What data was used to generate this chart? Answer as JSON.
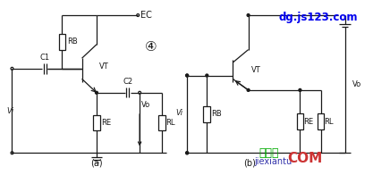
{
  "bg_color": "#ffffff",
  "line_color": "#1a1a1a",
  "watermark1_text": "dg.js123.com",
  "watermark1_color": "#0000ee",
  "watermark2_text": "jiexiantu",
  "watermark2_color": "#3333aa",
  "watermark3_text": "接线图",
  "watermark3_color": "#00aa00",
  "watermark4_text": "COM",
  "watermark4_color": "#cc3333",
  "label_circle3": "④",
  "label_a": "(a)",
  "label_b": "(b)",
  "label_EC": "EC",
  "label_RB_a": "RB",
  "label_C1": "C1",
  "label_VT_a": "VT",
  "label_RE_a": "RE",
  "label_C2": "C2",
  "label_Vo_a": "Vo",
  "label_RL_a": "RL",
  "label_Vi_a": "Vi",
  "label_VT_b": "VT",
  "label_RB_b": "RB",
  "label_RE_b": "RE",
  "label_RL_b": "RL",
  "label_Vo_b": "Vo",
  "label_Vi_b": "Vi"
}
